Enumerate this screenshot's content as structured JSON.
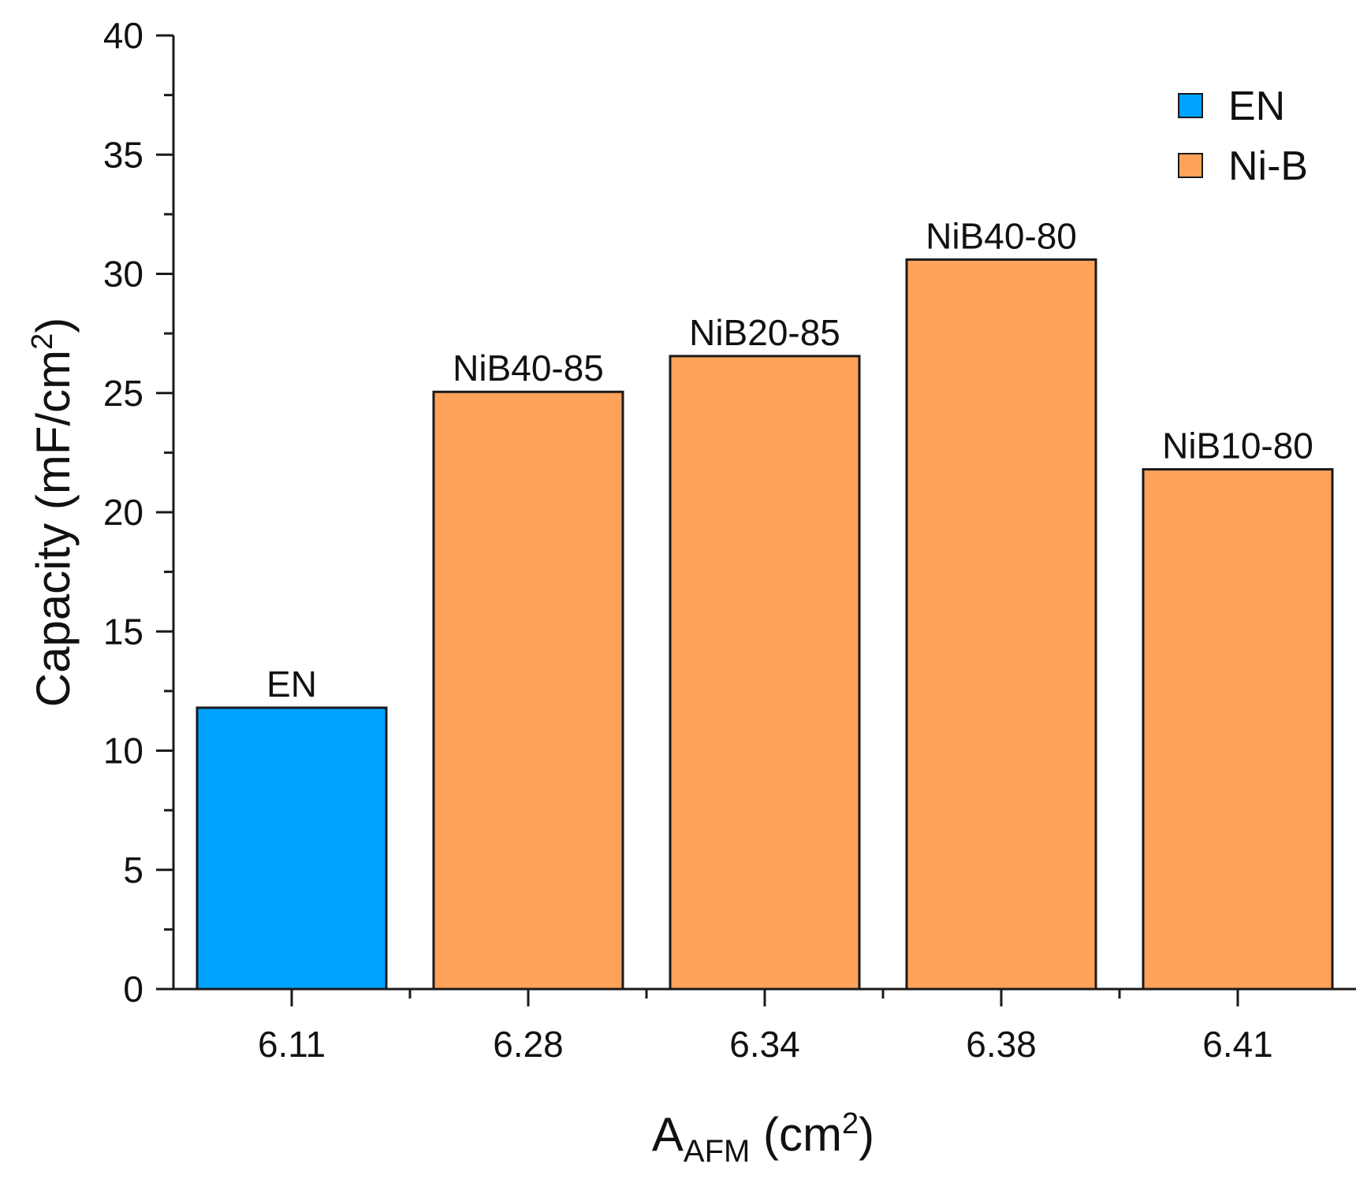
{
  "chart_data": {
    "type": "bar",
    "categories": [
      "6.11",
      "6.28",
      "6.34",
      "6.38",
      "6.41"
    ],
    "values": [
      11.8,
      25.05,
      26.55,
      30.6,
      21.8
    ],
    "bar_labels": [
      "EN",
      "NiB40-85",
      "NiB20-85",
      "NiB40-80",
      "NiB10-80"
    ],
    "bar_series": [
      "EN",
      "Ni-B",
      "Ni-B",
      "Ni-B",
      "Ni-B"
    ],
    "series": [
      {
        "name": "EN",
        "color": "#00a2ff"
      },
      {
        "name": "Ni-B",
        "color": "#ffa35a"
      }
    ],
    "ylim": [
      0,
      40
    ],
    "yticks": [
      0,
      5,
      10,
      15,
      20,
      25,
      30,
      35,
      40
    ],
    "ylabel": {
      "main": "Capacity (mF/cm",
      "sup": "2",
      "close": ")"
    },
    "xlabel": {
      "main": "A",
      "sub": "AFM",
      "rest": " (cm",
      "sup": "2",
      "close": ")"
    },
    "legend_position": "top-right",
    "grid": false
  }
}
